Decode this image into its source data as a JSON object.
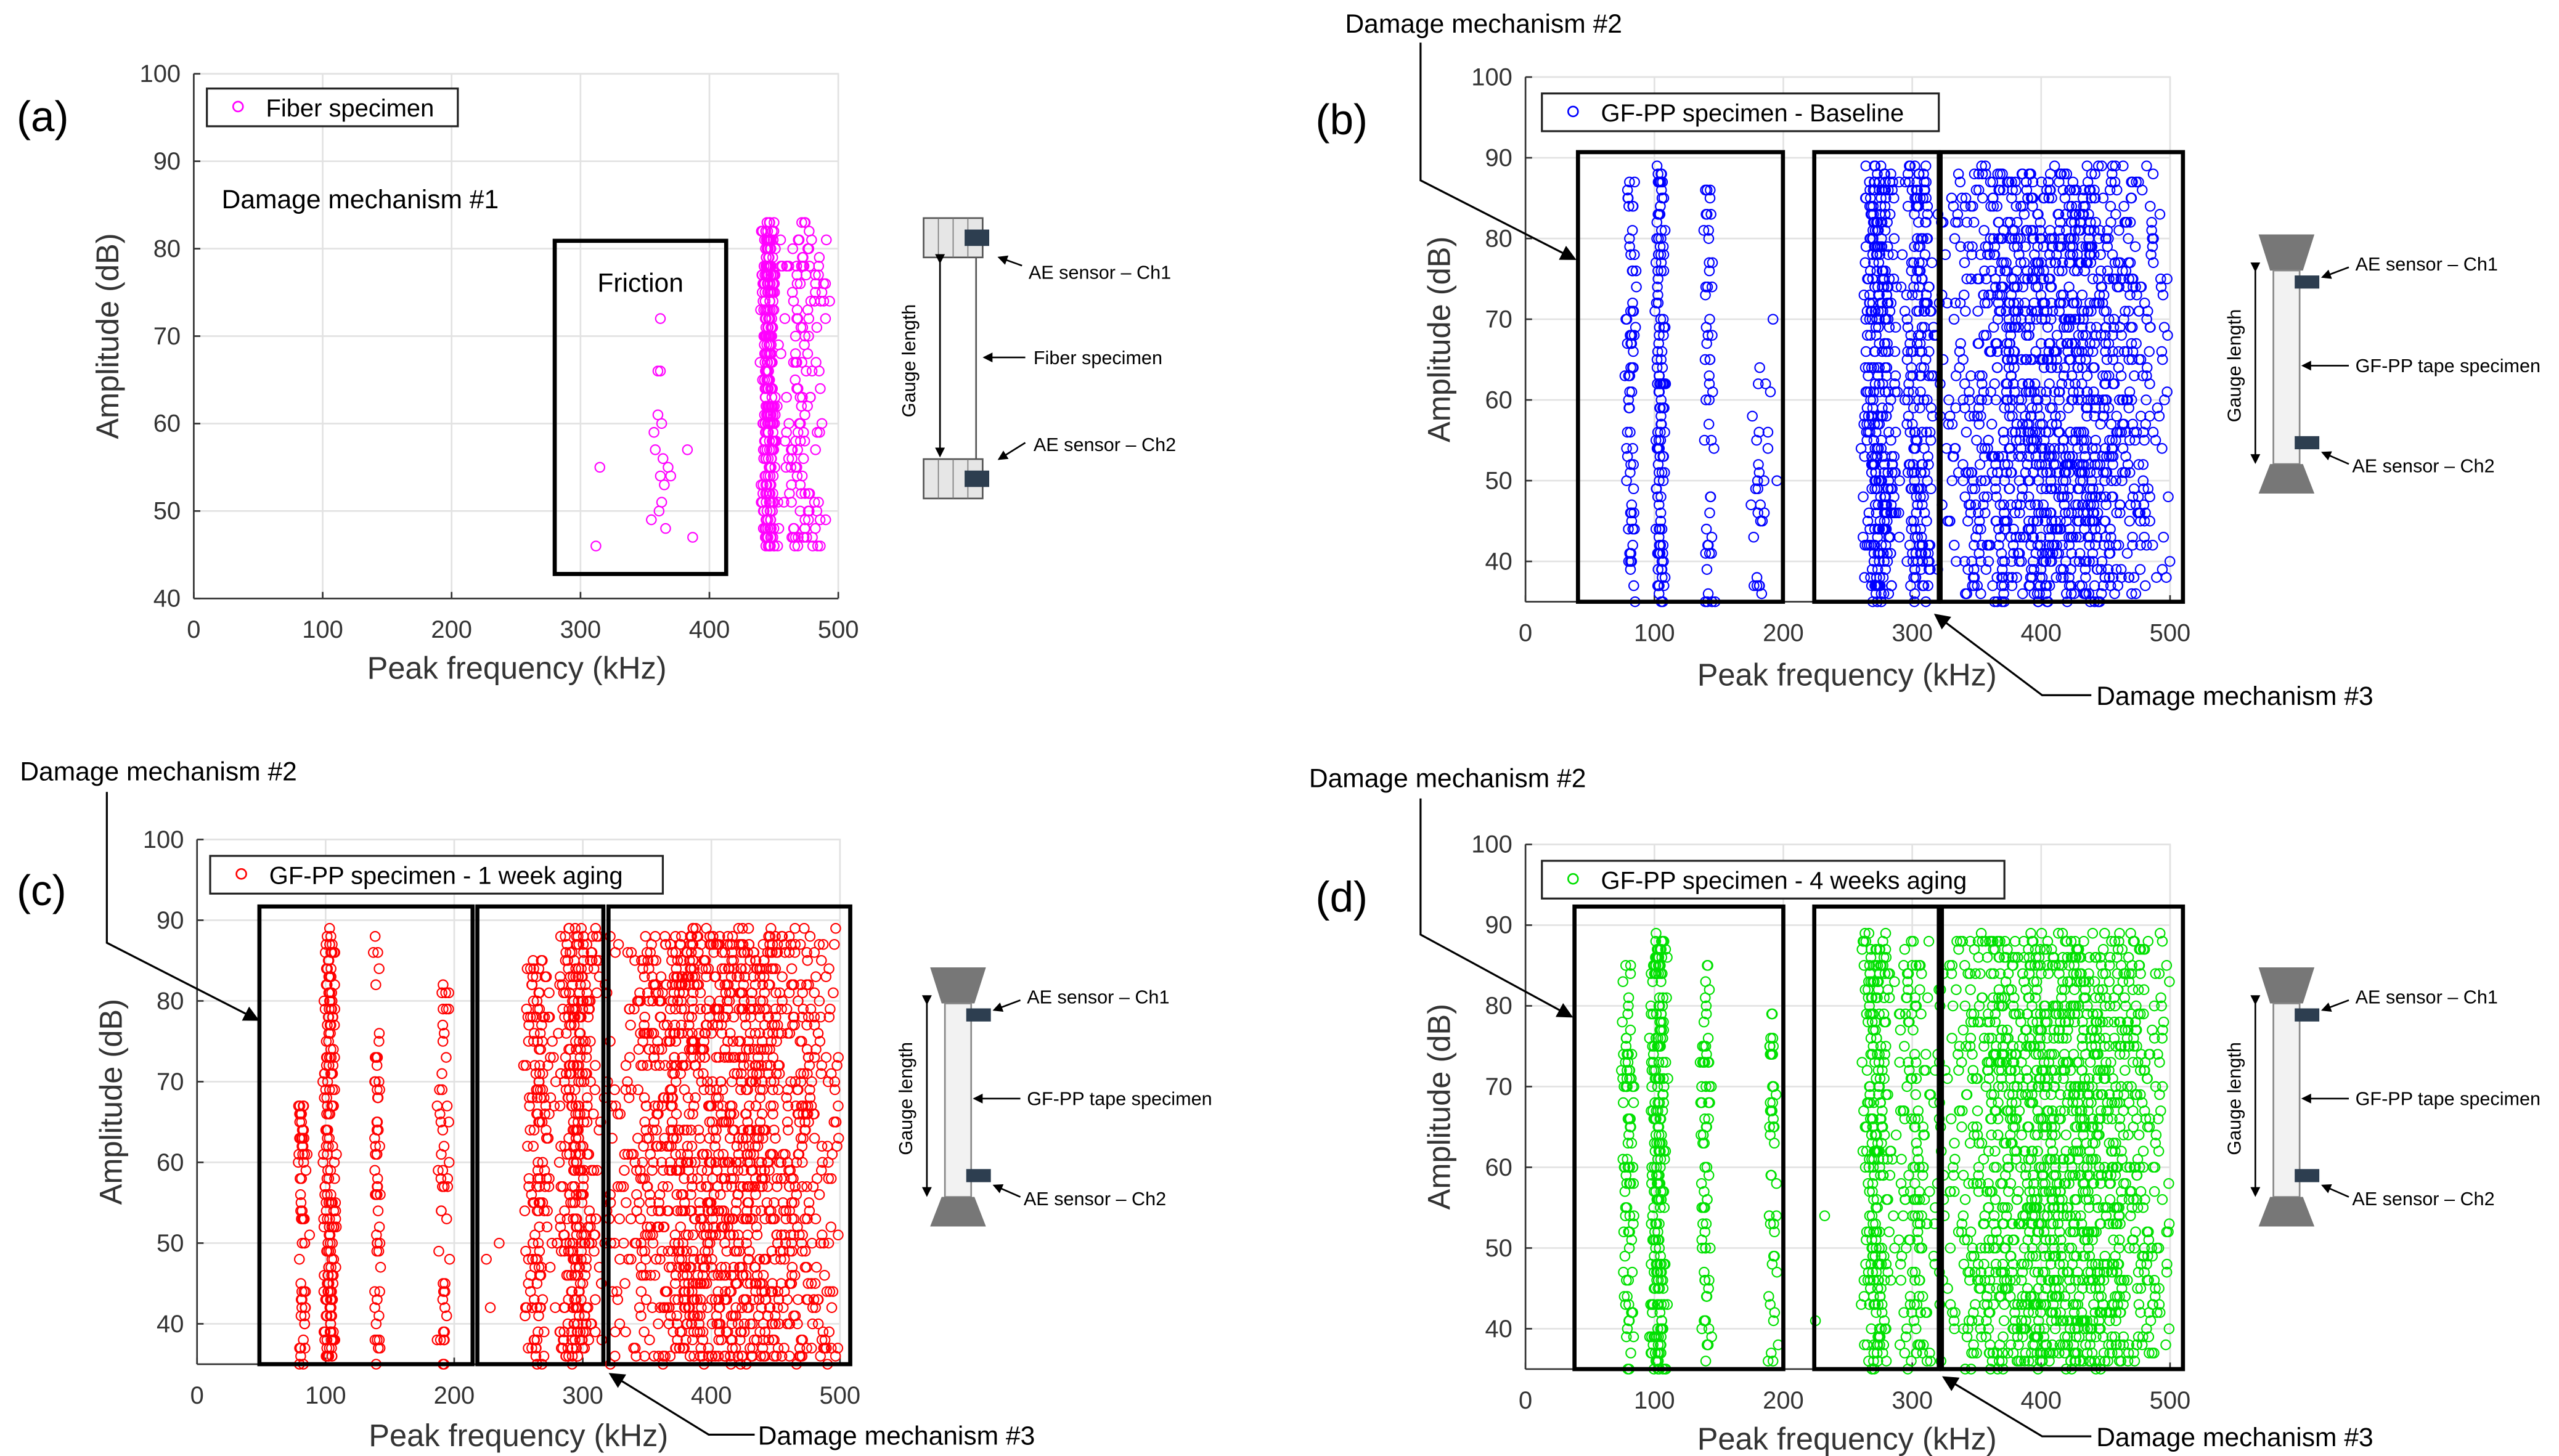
{
  "chart_data": [
    {
      "type": "scatter",
      "panel_label": "(a)",
      "legend": "Fiber specimen",
      "color": "#ff00ff",
      "xlabel": "Peak frequency (kHz)",
      "ylabel": "Amplitude (dB)",
      "xlim": [
        0,
        500
      ],
      "ylim": [
        40,
        100
      ],
      "xticks": [
        "0",
        "100",
        "200",
        "300",
        "400",
        "500"
      ],
      "yticks": [
        "40",
        "50",
        "60",
        "70",
        "80",
        "90",
        "100"
      ],
      "grid": true,
      "legend_position": "top-left",
      "points": [
        [
          312,
          46
        ],
        [
          315,
          55
        ],
        [
          355,
          49
        ],
        [
          357,
          59
        ],
        [
          358,
          57
        ],
        [
          360,
          61
        ],
        [
          360,
          66
        ],
        [
          362,
          66
        ],
        [
          362,
          72
        ],
        [
          363,
          60
        ],
        [
          363,
          51
        ],
        [
          361,
          50
        ],
        [
          364,
          56
        ],
        [
          365,
          53
        ],
        [
          366,
          48
        ],
        [
          368,
          55
        ],
        [
          370,
          54
        ],
        [
          383,
          57
        ],
        [
          387,
          47
        ],
        [
          362,
          54
        ]
      ],
      "clusters": [
        {
          "x": 446,
          "xspread": 5,
          "y": [
            46,
            83
          ],
          "n": 320
        },
        {
          "x": 472,
          "xspread": 18,
          "y": [
            46,
            83
          ],
          "n": 150
        }
      ],
      "boxes": [
        {
          "x": [
            280,
            413
          ],
          "y": [
            42.8,
            80.9
          ],
          "label": "Friction"
        }
      ],
      "annotations": [
        "Damage mechanism #1"
      ],
      "schematic": {
        "type": "fiber",
        "labels": [
          "AE sensor – Ch1",
          "Fiber specimen",
          "AE sensor – Ch2",
          "Gauge length"
        ]
      }
    },
    {
      "type": "scatter",
      "panel_label": "(b)",
      "legend": "GF-PP specimen - Baseline",
      "color": "#0000ff",
      "xlabel": "Peak frequency (kHz)",
      "ylabel": "Amplitude (dB)",
      "xlim": [
        0,
        500
      ],
      "ylim": [
        35,
        100
      ],
      "xticks": [
        "0",
        "100",
        "200",
        "300",
        "400",
        "500"
      ],
      "yticks": [
        "40",
        "50",
        "60",
        "70",
        "80",
        "90",
        "100"
      ],
      "grid": true,
      "legend_position": "top-left",
      "points": [
        [
          192,
          70
        ],
        [
          195,
          50
        ],
        [
          190,
          61
        ],
        [
          188,
          56
        ],
        [
          188,
          54
        ]
      ],
      "clusters": [
        {
          "x": 82,
          "xspread": 4,
          "y": [
            35,
            87
          ],
          "n": 70
        },
        {
          "x": 104,
          "xspread": 4,
          "y": [
            35,
            89
          ],
          "n": 130
        },
        {
          "x": 142,
          "xspread": 4,
          "y": [
            35,
            87
          ],
          "n": 50
        },
        {
          "x": 180,
          "xspread": 6,
          "y": [
            35,
            65
          ],
          "n": 25
        },
        {
          "x": 275,
          "xspread": 12,
          "y": [
            35,
            89
          ],
          "n": 350
        },
        {
          "x": 305,
          "xspread": 12,
          "y": [
            35,
            89
          ],
          "n": 200
        },
        {
          "x": 412,
          "xspread": 90,
          "y": [
            35,
            89
          ],
          "n": 1400
        }
      ],
      "boxes": [
        {
          "x": [
            40.7,
            199.7
          ],
          "y": [
            35,
            90.7
          ]
        },
        {
          "x": [
            224,
            320.6
          ],
          "y": [
            35,
            90.7
          ]
        },
        {
          "x": [
            322,
            510
          ],
          "y": [
            35,
            90.7
          ]
        }
      ],
      "annotations": [
        "Damage mechanism #2",
        "Damage mechanism #3"
      ],
      "schematic": {
        "type": "gfpp",
        "labels": [
          "AE sensor – Ch1",
          "GF-PP tape specimen",
          "AE sensor – Ch2",
          "Gauge length"
        ]
      }
    },
    {
      "type": "scatter",
      "panel_label": "(c)",
      "legend": "GF-PP specimen - 1 week aging",
      "color": "#ff0000",
      "xlabel": "Peak frequency (kHz)",
      "ylabel": "Amplitude (dB)",
      "xlim": [
        0,
        500
      ],
      "ylim": [
        35,
        100
      ],
      "xticks": [
        "0",
        "100",
        "200",
        "300",
        "400",
        "500"
      ],
      "yticks": [
        "40",
        "50",
        "60",
        "70",
        "80",
        "90",
        "100"
      ],
      "grid": true,
      "legend_position": "top-left",
      "points": [
        [
          228,
          42
        ],
        [
          225,
          48
        ],
        [
          235,
          50
        ]
      ],
      "clusters": [
        {
          "x": 82,
          "xspread": 4,
          "y": [
            35,
            68
          ],
          "n": 60
        },
        {
          "x": 103,
          "xspread": 5,
          "y": [
            35,
            89
          ],
          "n": 200
        },
        {
          "x": 140,
          "xspread": 3,
          "y": [
            35,
            89
          ],
          "n": 60
        },
        {
          "x": 192,
          "xspread": 4,
          "y": [
            35,
            82
          ],
          "n": 50
        },
        {
          "x": 265,
          "xspread": 10,
          "y": [
            35,
            85
          ],
          "n": 150
        },
        {
          "x": 295,
          "xspread": 14,
          "y": [
            35,
            89
          ],
          "n": 320
        },
        {
          "x": 415,
          "xspread": 95,
          "y": [
            35,
            89
          ],
          "n": 1500
        }
      ],
      "boxes": [
        {
          "x": [
            48.5,
            214.3
          ],
          "y": [
            35,
            91.7
          ]
        },
        {
          "x": [
            218,
            316
          ],
          "y": [
            35,
            91.7
          ]
        },
        {
          "x": [
            320,
            508
          ],
          "y": [
            35,
            91.7
          ]
        }
      ],
      "annotations": [
        "Damage mechanism #2",
        "Damage mechanism #3"
      ],
      "schematic": {
        "type": "gfpp",
        "labels": [
          "AE sensor – Ch1",
          "GF-PP tape specimen",
          "AE sensor – Ch2",
          "Gauge length"
        ]
      }
    },
    {
      "type": "scatter",
      "panel_label": "(d)",
      "legend": "GF-PP specimen - 4 weeks aging",
      "color": "#00e000",
      "xlabel": "Peak frequency (kHz)",
      "ylabel": "Amplitude (dB)",
      "xlim": [
        0,
        500
      ],
      "ylim": [
        35,
        100
      ],
      "xticks": [
        "0",
        "100",
        "200",
        "300",
        "400",
        "500"
      ],
      "yticks": [
        "40",
        "50",
        "60",
        "70",
        "80",
        "90",
        "100"
      ],
      "grid": true,
      "legend_position": "top-left",
      "points": [
        [
          232,
          54
        ],
        [
          225,
          41
        ]
      ],
      "clusters": [
        {
          "x": 80,
          "xspread": 5,
          "y": [
            35,
            86
          ],
          "n": 90
        },
        {
          "x": 103,
          "xspread": 6,
          "y": [
            35,
            89
          ],
          "n": 260
        },
        {
          "x": 140,
          "xspread": 4,
          "y": [
            35,
            87
          ],
          "n": 70
        },
        {
          "x": 192,
          "xspread": 4,
          "y": [
            35,
            82
          ],
          "n": 50
        },
        {
          "x": 272,
          "xspread": 10,
          "y": [
            35,
            89
          ],
          "n": 250
        },
        {
          "x": 300,
          "xspread": 12,
          "y": [
            35,
            89
          ],
          "n": 120
        },
        {
          "x": 415,
          "xspread": 95,
          "y": [
            35,
            89
          ],
          "n": 1600
        }
      ],
      "boxes": [
        {
          "x": [
            38,
            200
          ],
          "y": [
            35,
            92.3
          ]
        },
        {
          "x": [
            224,
            320.6
          ],
          "y": [
            35,
            92.3
          ]
        },
        {
          "x": [
            323,
            510
          ],
          "y": [
            35,
            92.3
          ]
        }
      ],
      "annotations": [
        "Damage mechanism #2",
        "Damage mechanism #3"
      ],
      "schematic": {
        "type": "gfpp",
        "labels": [
          "AE sensor – Ch1",
          "GF-PP tape specimen",
          "AE sensor – Ch2",
          "Gauge length"
        ]
      }
    }
  ]
}
